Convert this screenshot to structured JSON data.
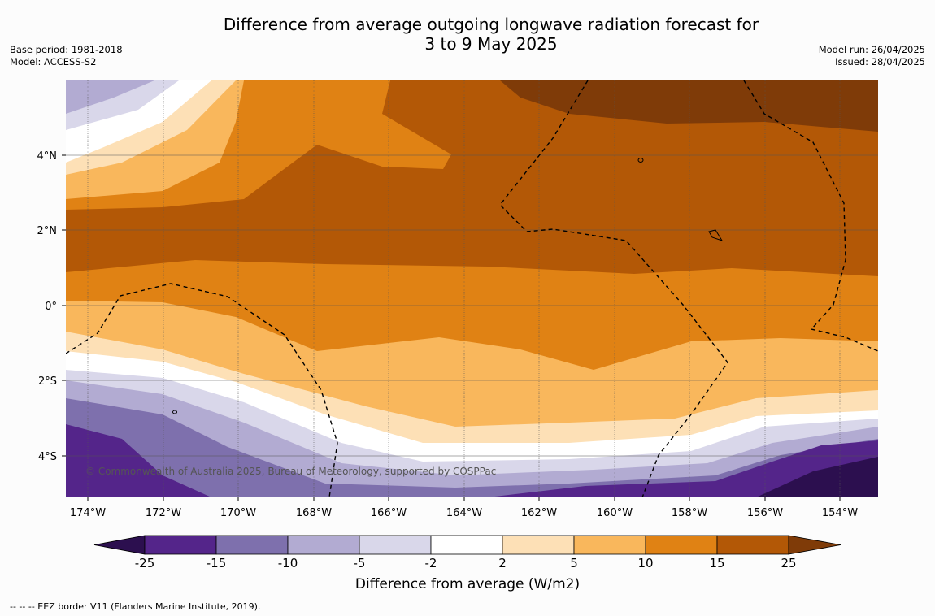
{
  "title_line1": "Difference from average outgoing longwave radiation forecast for",
  "title_line2": "3 to 9 May 2025",
  "base_period": "Base period: 1981-2018",
  "model": "Model: ACCESS-S2",
  "model_run": "Model run: 26/04/2025",
  "issued": "Issued: 28/04/2025",
  "copyright": "© Commonwealth of Australia 2025, Bureau of Meteorology, supported by COSPPac",
  "lon_labels": [
    "174°W",
    "172°W",
    "170°W",
    "168°W",
    "166°W",
    "164°W",
    "162°W",
    "160°W",
    "158°W",
    "156°W",
    "154°W"
  ],
  "lat_labels": [
    "4°N",
    "2°N",
    "0°",
    "2°S",
    "4°S"
  ],
  "colorbar": {
    "ticks": [
      "-25",
      "-15",
      "-10",
      "-5",
      "-2",
      "2",
      "5",
      "10",
      "15",
      "25"
    ],
    "title": "Difference from average (W/m2)",
    "colors": [
      "#2c0f4f",
      "#54258a",
      "#7e70ad",
      "#b2abd2",
      "#d9d7ea",
      "#ffffff",
      "#fde0b6",
      "#f9b75c",
      "#e08214",
      "#b35806",
      "#7f3b08"
    ]
  },
  "legend_eez": "--  --  -- EEZ border V11 (Flanders Marine Institute, 2019)."
}
